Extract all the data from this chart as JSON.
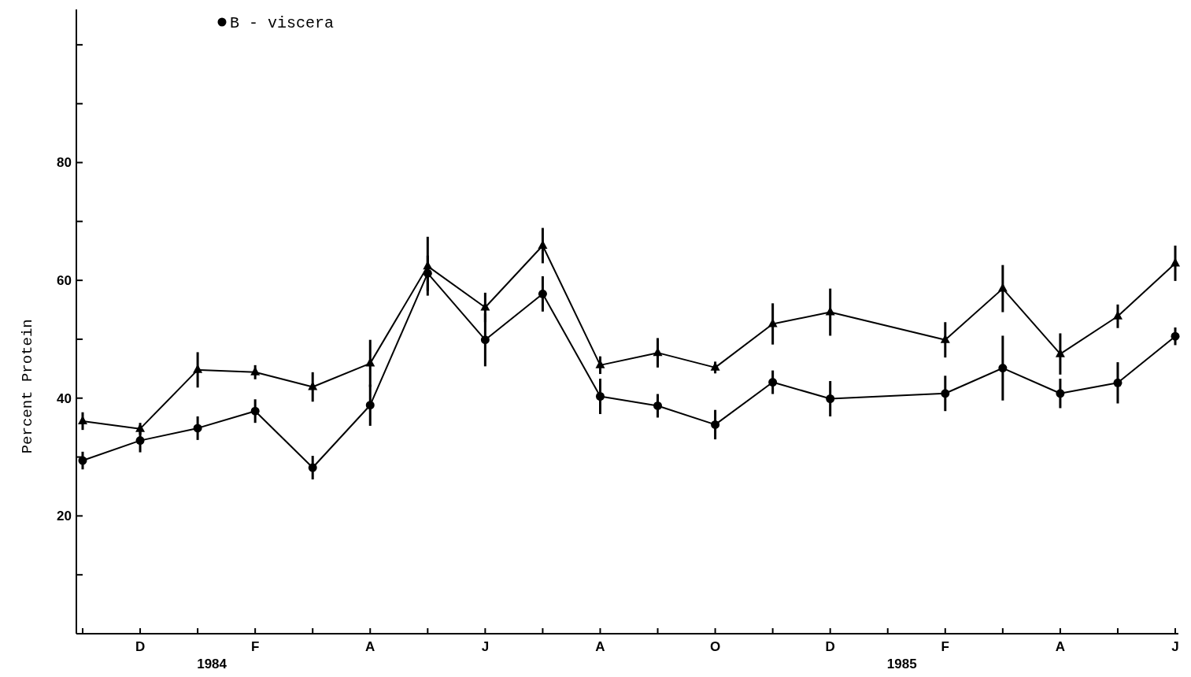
{
  "chart_data": {
    "type": "line",
    "ylabel": "Percent Protein",
    "categories": [
      null,
      "D",
      null,
      "F",
      null,
      "A",
      null,
      "J",
      null,
      "A",
      null,
      "O",
      null,
      "D",
      null,
      "F",
      null,
      "A",
      null,
      "J"
    ],
    "ylim": [
      0,
      106
    ],
    "yticks": [
      {
        "value": 10,
        "label": null
      },
      20,
      {
        "value": 30,
        "label": null
      },
      40,
      {
        "value": 50,
        "label": null
      },
      60,
      {
        "value": 70,
        "label": null
      },
      80,
      {
        "value": 90,
        "label": null
      },
      {
        "value": 100,
        "label": null
      }
    ],
    "series": [
      {
        "color": "#000000",
        "marker": "triangle",
        "values": [
          36.1,
          34.8,
          44.8,
          44.4,
          41.9,
          45.9,
          62.4,
          55.4,
          65.9,
          45.6,
          47.7,
          45.2,
          52.6,
          54.6,
          null,
          49.9,
          58.6,
          47.5,
          53.9,
          62.9
        ],
        "errors": [
          1.5,
          1,
          3,
          1.2,
          2.5,
          4,
          5,
          2.5,
          3,
          1.5,
          2.5,
          1,
          3.5,
          4,
          null,
          3,
          4,
          3.5,
          2,
          3
        ]
      },
      {
        "name": "B - viscera",
        "color": "#000000",
        "marker": "circle",
        "values": [
          29.4,
          32.8,
          34.9,
          37.8,
          28.2,
          38.8,
          61.2,
          49.9,
          57.7,
          40.3,
          38.7,
          35.5,
          42.7,
          39.9,
          null,
          40.8,
          45.1,
          40.8,
          42.6,
          50.5
        ],
        "errors": [
          1.5,
          2,
          2,
          2,
          2,
          3.5,
          3,
          4.5,
          3,
          3,
          2,
          2.5,
          2,
          3,
          null,
          3,
          5.5,
          2.5,
          3.5,
          1.5
        ]
      }
    ],
    "annotations": [
      "1984",
      "1985"
    ],
    "legend": "top left",
    "grid": false,
    "line_style": "solid"
  }
}
